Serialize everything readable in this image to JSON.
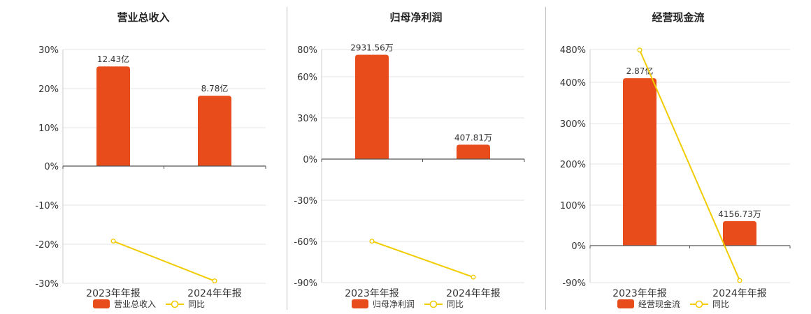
{
  "chart_data": [
    {
      "type": "bar",
      "title": "营业总收入",
      "categories": [
        "2023年年报",
        "2024年年报"
      ],
      "series": [
        {
          "name": "营业总收入",
          "type": "bar",
          "values": [
            25.5,
            18.0
          ],
          "labels": [
            "12.43亿",
            "8.78亿"
          ]
        },
        {
          "name": "同比",
          "type": "line",
          "values": [
            -19.2,
            -29.4
          ]
        }
      ],
      "yticks": [
        "30%",
        "20%",
        "10%",
        "0%",
        "-10%",
        "-20%",
        "-30%"
      ],
      "ylim": [
        -30,
        30
      ],
      "grid": true,
      "legend": "bottom",
      "colors": {
        "bar": "#e84c1b",
        "line": "#f0cc00"
      }
    },
    {
      "type": "bar",
      "title": "归母净利润",
      "categories": [
        "2023年年报",
        "2024年年报"
      ],
      "series": [
        {
          "name": "归母净利润",
          "type": "bar",
          "values": [
            76.0,
            10.5
          ],
          "labels": [
            "2931.56万",
            "407.81万"
          ]
        },
        {
          "name": "同比",
          "type": "line",
          "values": [
            -59.8,
            -86.0
          ]
        }
      ],
      "yticks": [
        "80%",
        "60%",
        "30%",
        "0%",
        "-30%",
        "-60%",
        "-90%"
      ],
      "ylim": [
        -90,
        80
      ],
      "grid": true,
      "legend": "bottom",
      "colors": {
        "bar": "#e84c1b",
        "line": "#f0cc00"
      }
    },
    {
      "type": "bar",
      "title": "经营现金流",
      "categories": [
        "2023年年报",
        "2024年年报"
      ],
      "series": [
        {
          "name": "经营现金流",
          "type": "bar",
          "values": [
            410,
            60
          ],
          "labels": [
            "2.87亿",
            "4156.73万"
          ]
        },
        {
          "name": "同比",
          "type": "line",
          "values": [
            479,
            -85
          ]
        }
      ],
      "yticks": [
        "480%",
        "400%",
        "300%",
        "200%",
        "100%",
        "0%",
        "-90%"
      ],
      "ylim": [
        -90,
        480
      ],
      "grid": true,
      "legend": "bottom",
      "colors": {
        "bar": "#e84c1b",
        "line": "#f0cc00"
      }
    }
  ]
}
